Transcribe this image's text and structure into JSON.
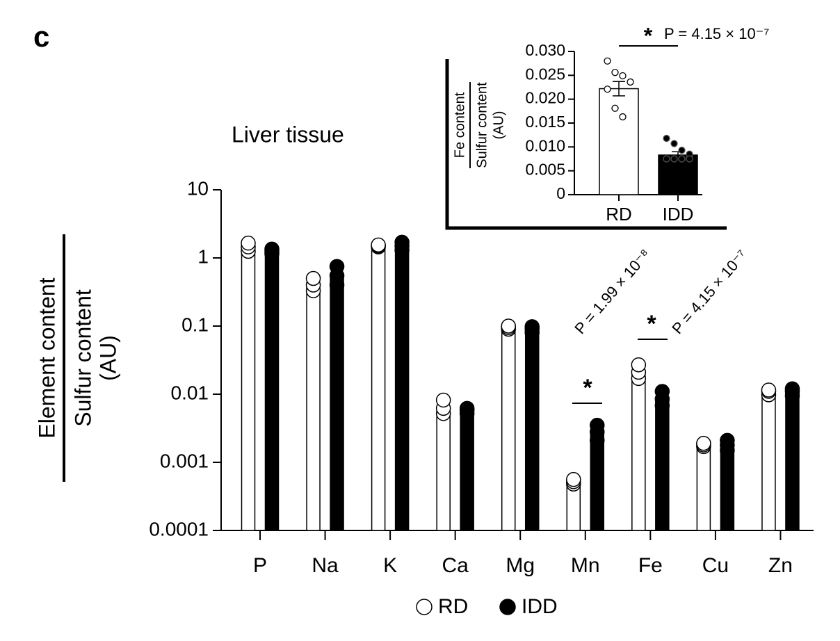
{
  "panel_label": "c",
  "chart_data": [
    {
      "type": "bar",
      "title": "Liver tissue",
      "y_label": [
        "Element content",
        "Sulfur content",
        "(AU)"
      ],
      "yscale": "log",
      "ylim": [
        0.0001,
        10
      ],
      "yticks": [
        0.0001,
        0.001,
        0.01,
        0.1,
        1,
        10
      ],
      "categories": [
        "P",
        "Na",
        "K",
        "Ca",
        "Mg",
        "Mn",
        "Fe",
        "Cu",
        "Zn"
      ],
      "series": [
        {
          "name": "RD",
          "color": "#ffffff",
          "values": [
            1.4,
            0.4,
            1.5,
            0.0066,
            0.095,
            0.0005,
            0.022,
            0.0018,
            0.011
          ],
          "points": [
            [
              1.25,
              1.45,
              1.65
            ],
            [
              0.33,
              0.4,
              0.5
            ],
            [
              1.45,
              1.5,
              1.55
            ],
            [
              0.0052,
              0.0062,
              0.0082
            ],
            [
              0.09,
              0.095,
              0.1
            ],
            [
              0.00048,
              0.00052,
              0.00056
            ],
            [
              0.017,
              0.021,
              0.027
            ],
            [
              0.0017,
              0.0018,
              0.0019
            ],
            [
              0.0098,
              0.011,
              0.0115
            ]
          ]
        },
        {
          "name": "IDD",
          "color": "#000000",
          "values": [
            1.25,
            0.55,
            1.5,
            0.006,
            0.09,
            0.003,
            0.0085,
            0.0018,
            0.011
          ],
          "points": [
            [
              1.15,
              1.25,
              1.35
            ],
            [
              0.4,
              0.55,
              0.75
            ],
            [
              1.3,
              1.5,
              1.7
            ],
            [
              0.0052,
              0.0058,
              0.0062
            ],
            [
              0.08,
              0.09,
              0.098
            ],
            [
              0.0021,
              0.0028,
              0.0035
            ],
            [
              0.0068,
              0.0085,
              0.011
            ],
            [
              0.0015,
              0.0018,
              0.0021
            ],
            [
              0.0095,
              0.011,
              0.012
            ]
          ]
        }
      ],
      "annotations": [
        "*",
        "P = 1.99 × 10⁻⁸",
        "*",
        "P = 4.15 × 10⁻⁷"
      ]
    },
    {
      "type": "bar",
      "y_label": [
        "Fe content",
        "Sulfur content",
        "(AU)"
      ],
      "ylim": [
        0,
        0.03
      ],
      "yticks": [
        0,
        0.005,
        {
          "value": 0.01,
          "label": "0.010"
        },
        0.015,
        {
          "value": 0.02,
          "label": "0.020"
        },
        0.025,
        {
          "value": 0.03,
          "label": "0.030"
        }
      ],
      "categories": [
        "RD",
        "IDD"
      ],
      "colors": [
        "#ffffff",
        "#000000"
      ],
      "values": [
        0.0222,
        0.0083
      ],
      "errors": [
        0.0015,
        0.0007
      ],
      "points": [
        [
          0.028,
          0.0256,
          0.0249,
          0.0236,
          0.0221,
          0.0181,
          0.0163
        ],
        [
          0.0118,
          0.0107,
          0.0093,
          0.0085,
          0.0075,
          0.0075,
          0.0075,
          0.0075
        ]
      ],
      "annotations": [
        "*",
        "P = 4.15 × 10⁻⁷"
      ]
    }
  ]
}
